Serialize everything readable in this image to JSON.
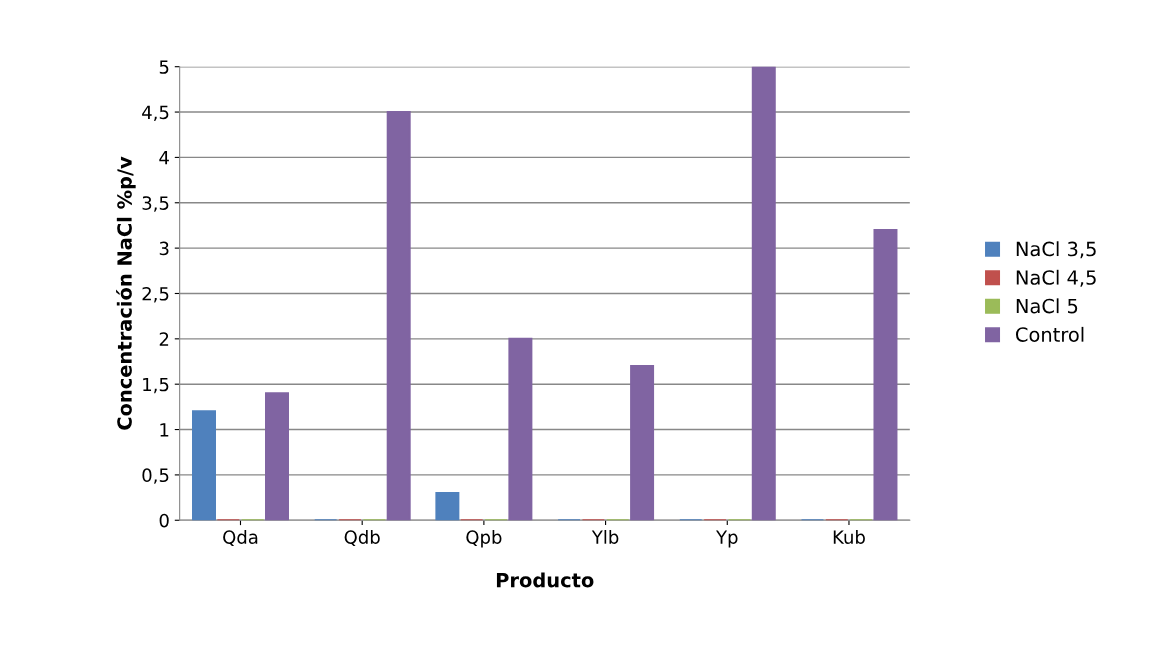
{
  "chart_data": {
    "type": "bar",
    "xlabel": "Producto",
    "ylabel": "Concentración NaCl %p/v",
    "categories": [
      "Qda",
      "Qdb",
      "Qpb",
      "Ylb",
      "Yp",
      "Kub"
    ],
    "series": [
      {
        "name": "NaCl 3,5",
        "color": "#4f81bd",
        "values": [
          1.2,
          0,
          0.3,
          0,
          0,
          0
        ]
      },
      {
        "name": "NaCl 4,5",
        "color": "#c0504d",
        "values": [
          0,
          0,
          0,
          0,
          0,
          0
        ]
      },
      {
        "name": "NaCl 5",
        "color": "#9bbb59",
        "values": [
          0,
          0,
          0,
          0,
          0,
          0
        ]
      },
      {
        "name": "Control",
        "color": "#8064a2",
        "values": [
          1.4,
          4.5,
          2.0,
          1.7,
          5.0,
          3.2
        ]
      }
    ],
    "ylim": [
      0,
      5
    ],
    "yticks": [
      0,
      {
        "value": 0.5,
        "label": "0,5"
      },
      1,
      {
        "value": 1.5,
        "label": "1,5"
      },
      2,
      {
        "value": 2.5,
        "label": "2,5"
      },
      3,
      {
        "value": 3.5,
        "label": "3,5"
      },
      4,
      {
        "value": 4.5,
        "label": "4,5"
      },
      5
    ],
    "grid": "y",
    "legend": "right"
  }
}
